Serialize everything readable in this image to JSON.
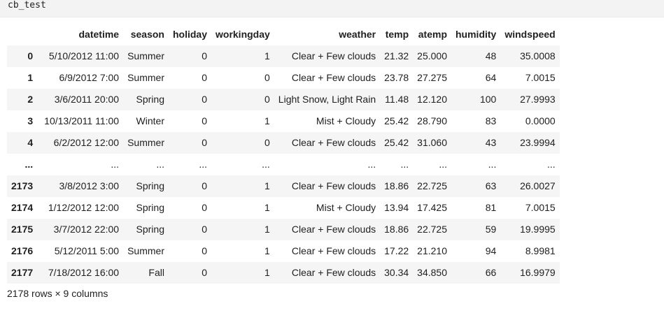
{
  "cell": {
    "code": "cb_test"
  },
  "dataframe": {
    "columns": [
      "datetime",
      "season",
      "holiday",
      "workingday",
      "weather",
      "temp",
      "atemp",
      "humidity",
      "windspeed"
    ],
    "rows": [
      {
        "index": "0",
        "values": [
          "5/10/2012 11:00",
          "Summer",
          "0",
          "1",
          "Clear + Few clouds",
          "21.32",
          "25.000",
          "48",
          "35.0008"
        ]
      },
      {
        "index": "1",
        "values": [
          "6/9/2012 7:00",
          "Summer",
          "0",
          "0",
          "Clear + Few clouds",
          "23.78",
          "27.275",
          "64",
          "7.0015"
        ]
      },
      {
        "index": "2",
        "values": [
          "3/6/2011 20:00",
          "Spring",
          "0",
          "0",
          "Light Snow, Light Rain",
          "11.48",
          "12.120",
          "100",
          "27.9993"
        ]
      },
      {
        "index": "3",
        "values": [
          "10/13/2011 11:00",
          "Winter",
          "0",
          "1",
          "Mist + Cloudy",
          "25.42",
          "28.790",
          "83",
          "0.0000"
        ]
      },
      {
        "index": "4",
        "values": [
          "6/2/2012 12:00",
          "Summer",
          "0",
          "0",
          "Clear + Few clouds",
          "25.42",
          "31.060",
          "43",
          "23.9994"
        ]
      },
      {
        "index": "...",
        "values": [
          "...",
          "...",
          "...",
          "...",
          "...",
          "...",
          "...",
          "...",
          "..."
        ]
      },
      {
        "index": "2173",
        "values": [
          "3/8/2012 3:00",
          "Spring",
          "0",
          "1",
          "Clear + Few clouds",
          "18.86",
          "22.725",
          "63",
          "26.0027"
        ]
      },
      {
        "index": "2174",
        "values": [
          "1/12/2012 12:00",
          "Spring",
          "0",
          "1",
          "Mist + Cloudy",
          "13.94",
          "17.425",
          "81",
          "7.0015"
        ]
      },
      {
        "index": "2175",
        "values": [
          "3/7/2012 22:00",
          "Spring",
          "0",
          "1",
          "Clear + Few clouds",
          "18.86",
          "22.725",
          "59",
          "19.9995"
        ]
      },
      {
        "index": "2176",
        "values": [
          "5/12/2011 5:00",
          "Summer",
          "0",
          "1",
          "Clear + Few clouds",
          "17.22",
          "21.210",
          "94",
          "8.9981"
        ]
      },
      {
        "index": "2177",
        "values": [
          "7/18/2012 16:00",
          "Fall",
          "0",
          "1",
          "Clear + Few clouds",
          "30.34",
          "34.850",
          "66",
          "16.9979"
        ]
      }
    ],
    "shape_text": "2178 rows × 9 columns"
  }
}
